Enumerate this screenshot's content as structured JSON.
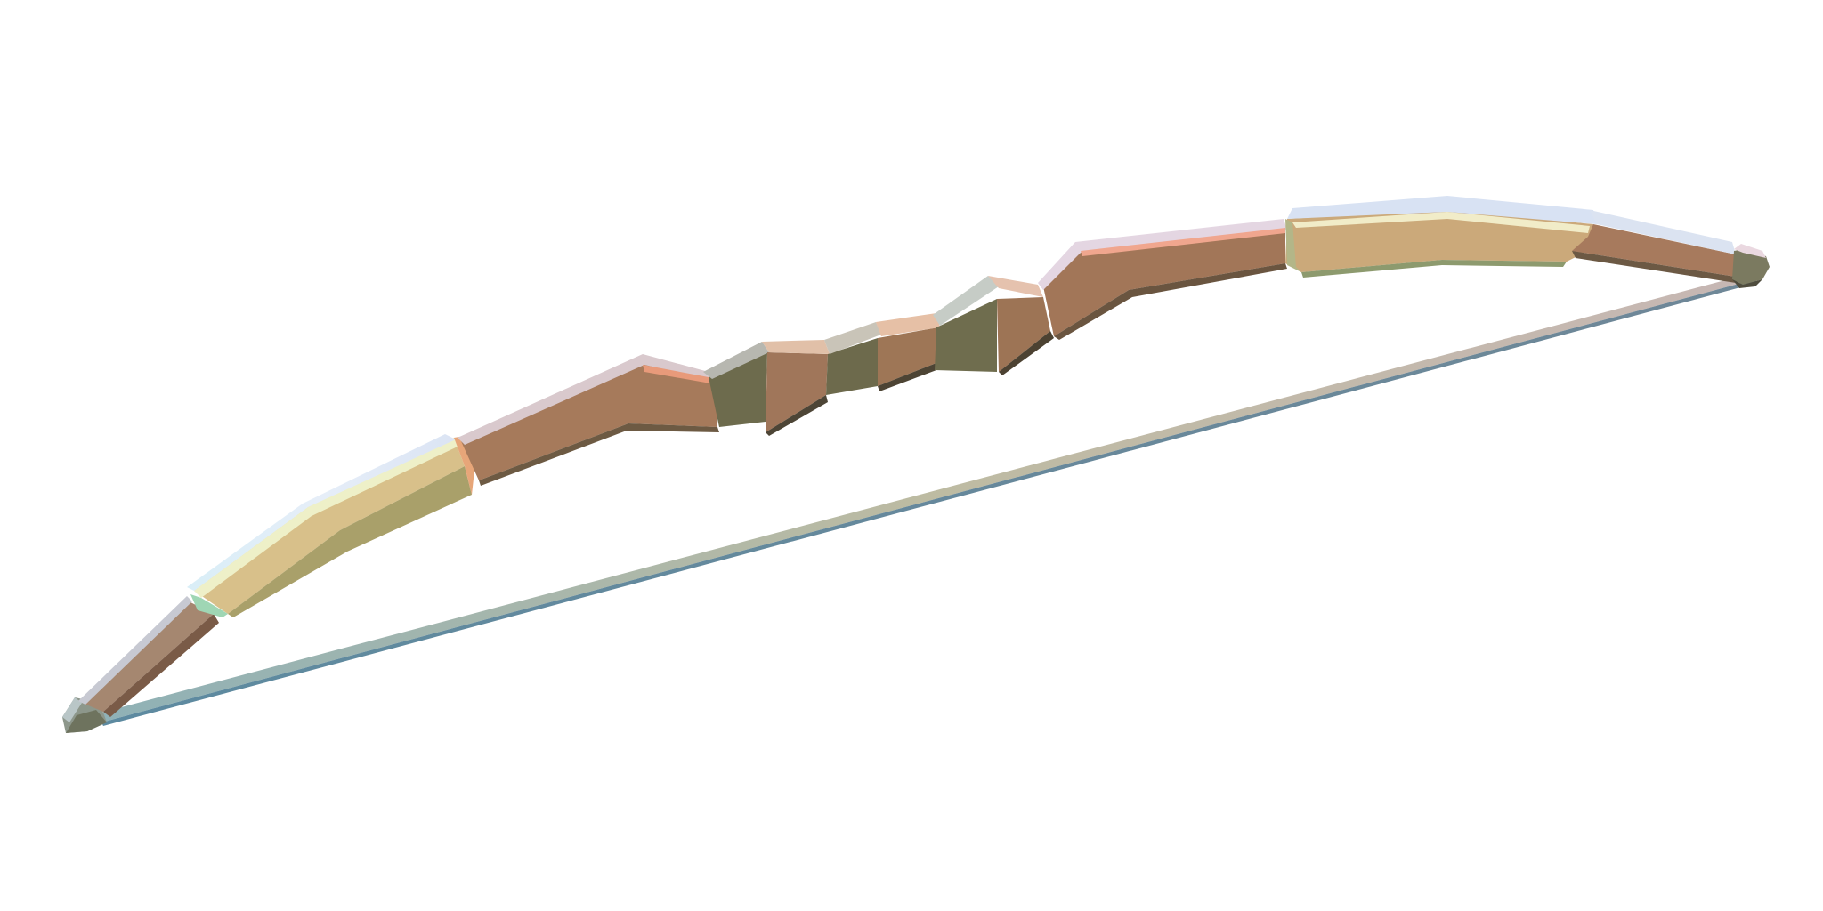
{
  "scene": {
    "background_color": "#ffffff",
    "subject": "low-poly-recurve-bow",
    "colors": {
      "wood_face": "#a67a5b",
      "wood_dark": "#6f6a4d",
      "wood_highlight": "#d9bd82",
      "limb_tip_light": "#cfd9c2",
      "edge_highlight": "#dbe7f2",
      "string_light": "#c7c1a6",
      "string_dark": "#6f8aa0",
      "nock_gray": "#8f958a"
    }
  }
}
